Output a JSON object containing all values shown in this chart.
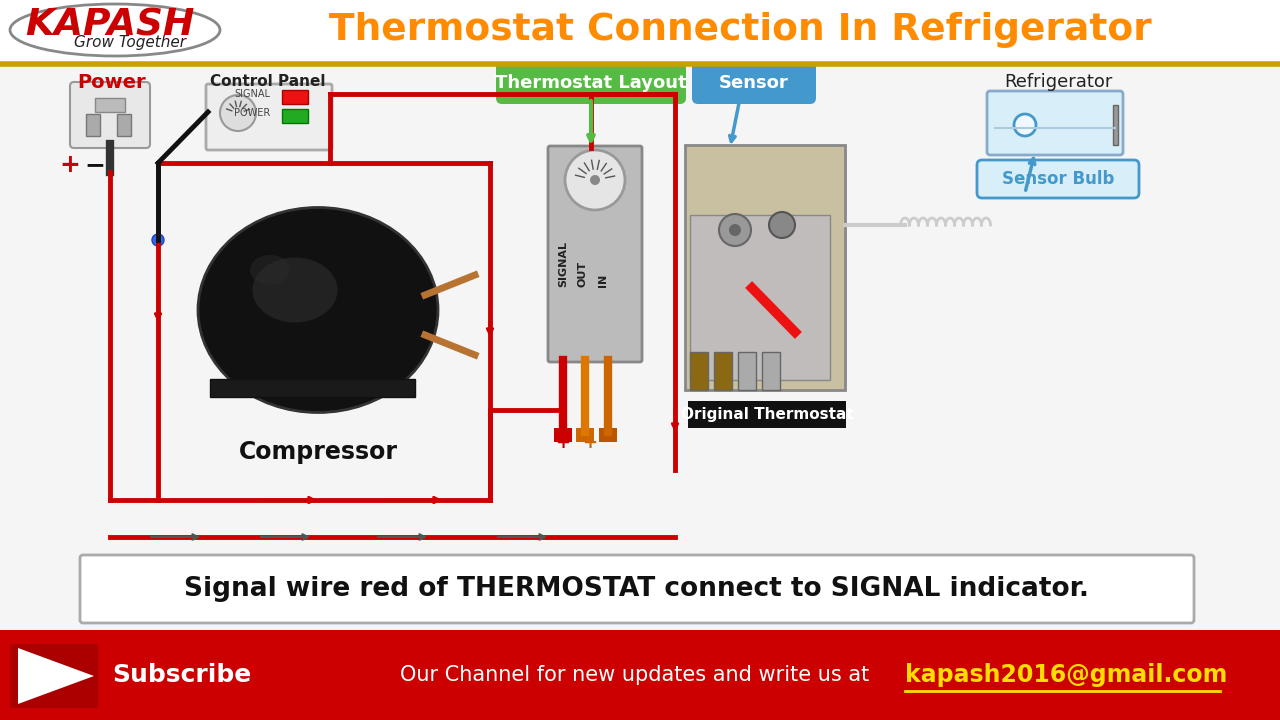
{
  "title": "Thermostat Connection In Refrigerator",
  "title_color": "#FF8C00",
  "bg_color": "#FFFFFF",
  "logo_text": "KAPASH",
  "logo_subtitle": "Grow Together",
  "logo_color": "#CC0000",
  "label_power": "Power",
  "label_control_panel": "Control Panel",
  "label_compressor": "Compressor",
  "label_thermostat_layout": "Thermostat Layout",
  "label_sensor": "Sensor",
  "label_refrigerator": "Refrigerator",
  "label_sensor_bulb": "Sensor Bulb",
  "label_original_thermostat": "Original Thermostat",
  "label_signal": "SIGNAL",
  "label_out": "OUT",
  "label_in": "IN",
  "label_power_cp": "POWER",
  "caption": "Signal wire red of THERMOSTAT connect to SIGNAL indicator.",
  "subscribe_text": "Subscribe",
  "channel_text": "Our Channel for new updates and write us at",
  "email_text": "kapash2016@gmail.com",
  "subscribe_bg": "#CC0000",
  "wire_red": "#CC0000",
  "wire_black": "#111111",
  "arrow_gray": "#555555",
  "green_label_bg": "#55BB44",
  "blue_label_bg": "#4499CC",
  "black_label_bg": "#111111",
  "plus_color": "#CC0000",
  "gold_line": "#C8A000"
}
